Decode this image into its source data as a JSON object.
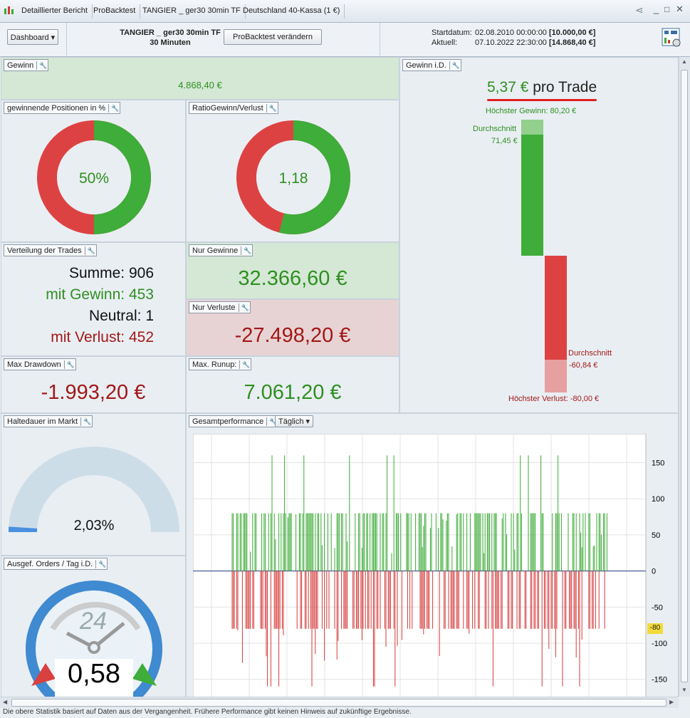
{
  "titlebar": {
    "tabs": [
      "Detaillierter Bericht",
      "ProBacktest",
      "TANGIER _ ger30 30min TF",
      "Deutschland 40-Kassa (1 €)"
    ]
  },
  "toolbar": {
    "dashboard": "Dashboard",
    "strategy": "TANGIER _ ger30 30min TF",
    "timeframe": "30 Minuten",
    "change_button": "ProBacktest verändern",
    "start_label": "Startdatum:",
    "start_date": "02.08.2010 00:00:00",
    "start_capital": "[10.000,00 €]",
    "current_label": "Aktuell:",
    "current_date": "07.10.2022 22:30:00",
    "current_capital": "[14.868,40 €]"
  },
  "gain": {
    "title": "Gewinn",
    "value": "4.868,40 €"
  },
  "winpct": {
    "title": "gewinnende Positionen in %",
    "value": "50%",
    "fraction": 0.5
  },
  "ratio": {
    "title": "RatioGewinn/Verlust",
    "value": "1,18",
    "fraction": 0.54
  },
  "trades": {
    "title": "Verteilung der Trades",
    "sum": "Summe: 906",
    "win": "mit Gewinn: 453",
    "neutral": "Neutral: 1",
    "loss": "mit Verlust: 452"
  },
  "only_gain": {
    "title": "Nur Gewinne",
    "value": "32.366,60 €"
  },
  "only_loss": {
    "title": "Nur Verluste",
    "value": "-27.498,20 €"
  },
  "drawdown": {
    "title": "Max Drawdown",
    "value": "-1.993,20 €"
  },
  "runup": {
    "title": "Max. Runup:",
    "value": "7.061,20 €"
  },
  "gain_id": {
    "title": "Gewinn i.D.",
    "per_trade_value": "5,37 €",
    "per_trade_label": "pro Trade",
    "max_gain": "Höchster Gewinn: 80,20 €",
    "avg_label": "Durchschnitt",
    "avg_gain": "71,45 €",
    "avg_loss": "-60,84 €",
    "max_loss": "Höchster Verlust: -80,00 €"
  },
  "holding": {
    "title": "Haltedauer im Markt",
    "value": "2,03%",
    "fraction": 0.0203
  },
  "orders": {
    "title": "Ausgef. Orders / Tag i.D.",
    "clock": "24",
    "value": "0,58"
  },
  "perf": {
    "title": "Gesamtperformance",
    "period": "Täglich",
    "marker": "-80"
  },
  "footer": {
    "text": "Die obere Statistik basiert auf Daten aus der Vergangenheit. Frühere Performance gibt keinen Hinweis auf zukünftige Ergebnisse."
  },
  "chart_data": {
    "type": "bar",
    "title": "",
    "xlabel": "",
    "ylabel": "",
    "ylim": [
      -175,
      190
    ],
    "y_ticks": [
      "150",
      "100",
      "50",
      "0",
      "-50",
      "-100",
      "-150"
    ],
    "summary": {
      "typical_gain": 80,
      "typical_loss": -80,
      "max_gain": 160,
      "max_loss": -160
    },
    "colors": {
      "gain": "#3aaa35",
      "loss": "#d53a3a"
    }
  }
}
